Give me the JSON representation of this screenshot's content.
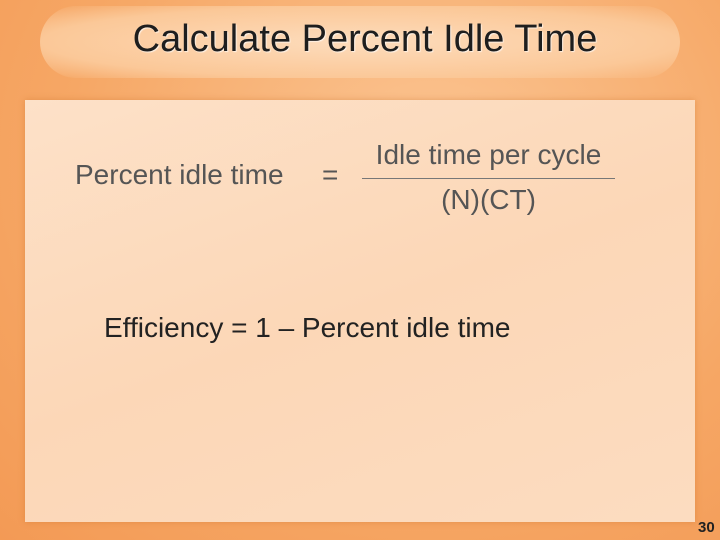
{
  "slide": {
    "title": "Calculate Percent Idle Time",
    "formula": {
      "left": "Percent idle time",
      "equals": "=",
      "numerator": "Idle time per cycle",
      "denominator": "(N)(CT)"
    },
    "efficiency": "Efficiency = 1 – Percent idle time",
    "page_number": "30"
  }
}
